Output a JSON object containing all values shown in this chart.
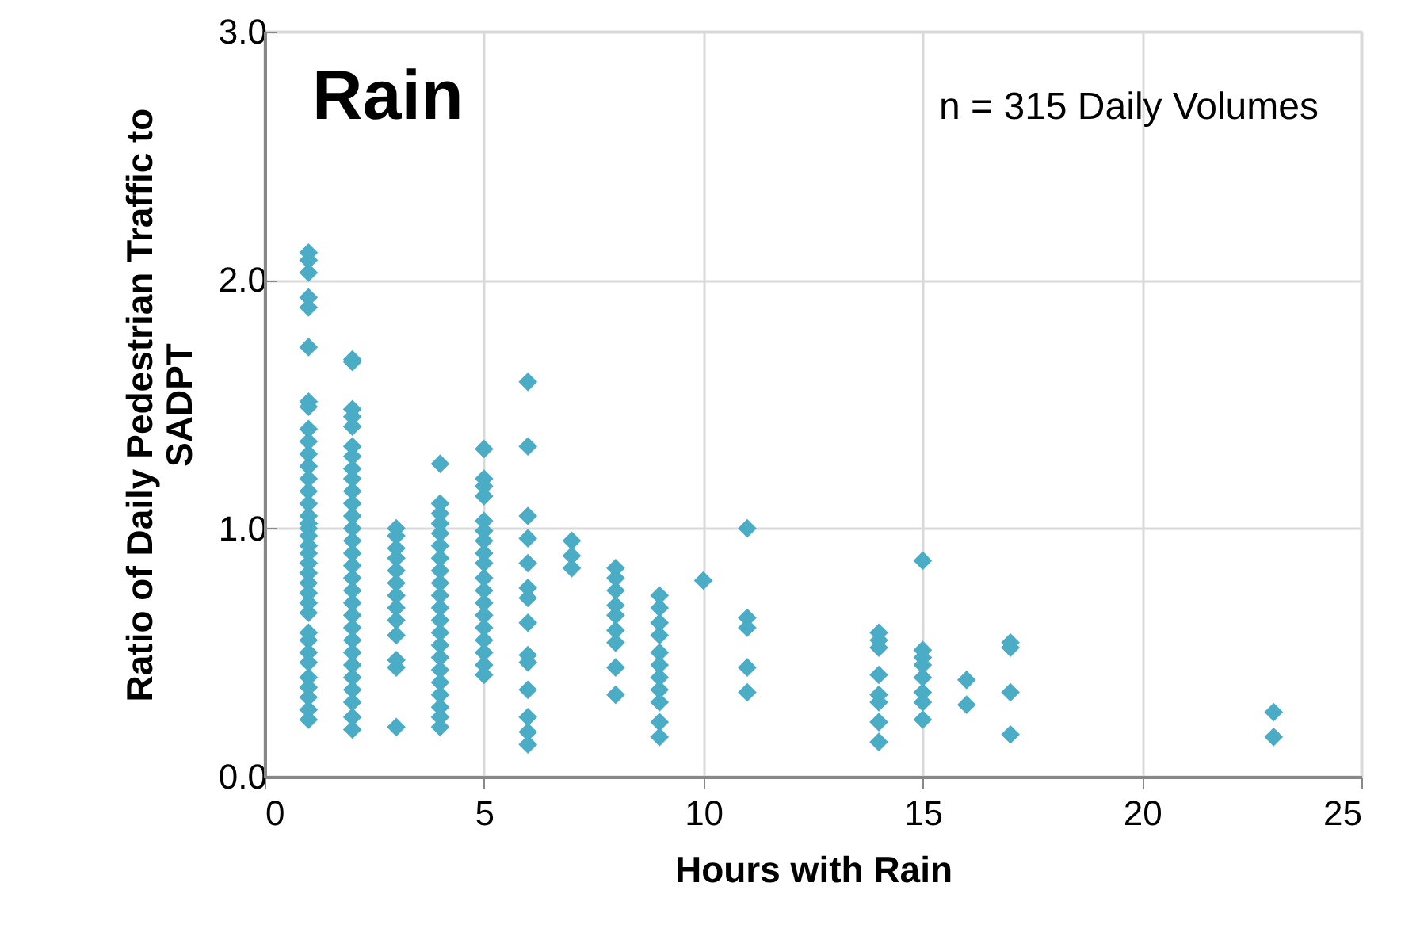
{
  "chart_data": {
    "type": "scatter",
    "title": "Rain",
    "xlabel": "Hours with Rain",
    "ylabel": "Ratio of Daily Pedestrian Traffic to SADPT",
    "annotations": [
      "n = 315 Daily Volumes"
    ],
    "xlim": [
      0,
      25
    ],
    "xticks": [
      0,
      5,
      10,
      15,
      20,
      25
    ],
    "ylim": [
      0,
      3
    ],
    "yticks": [
      {
        "value": 0,
        "label": "0.0"
      },
      {
        "value": 1,
        "label": "1.0"
      },
      {
        "value": 2,
        "label": "2.0"
      },
      {
        "value": 3,
        "label": "3.0"
      }
    ],
    "grid": true,
    "marker": "diamond",
    "series": [
      {
        "color": "#4bacc6",
        "x": [
          1,
          1,
          1,
          1,
          1,
          1,
          1,
          1,
          1,
          1,
          1,
          1,
          1,
          1,
          1,
          1,
          1,
          1,
          1,
          1,
          1,
          1,
          1,
          1,
          1,
          1,
          1,
          1,
          1,
          1,
          1,
          1,
          1,
          1,
          1,
          1,
          2,
          2,
          2,
          2,
          2,
          2,
          2,
          2,
          2,
          2,
          2,
          2,
          2,
          2,
          2,
          2,
          2,
          2,
          2,
          2,
          2,
          2,
          2,
          2,
          2,
          2,
          2,
          2,
          2,
          3,
          3,
          3,
          3,
          3,
          3,
          3,
          3,
          3,
          3,
          3,
          3,
          3,
          4,
          4,
          4,
          4,
          4,
          4,
          4,
          4,
          4,
          4,
          4,
          4,
          4,
          4,
          4,
          4,
          4,
          4,
          4,
          4,
          4,
          5,
          5,
          5,
          5,
          5,
          5,
          5,
          5,
          5,
          5,
          5,
          5,
          5,
          5,
          5,
          5,
          5,
          5,
          6,
          6,
          6,
          6,
          6,
          6,
          6,
          6,
          6,
          6,
          6,
          6,
          6,
          6,
          7,
          7,
          7,
          8,
          8,
          8,
          8,
          8,
          8,
          8,
          8,
          8,
          9,
          9,
          9,
          9,
          9,
          9,
          9,
          9,
          9,
          9,
          9,
          10,
          11,
          11,
          11,
          11,
          11,
          14,
          14,
          14,
          14,
          14,
          14,
          14,
          14,
          15,
          15,
          15,
          15,
          15,
          15,
          15,
          15,
          16,
          16,
          17,
          17,
          17,
          17,
          23,
          23
        ],
        "values": [
          2.11,
          2.08,
          2.03,
          1.93,
          1.89,
          1.73,
          1.51,
          1.49,
          1.4,
          1.35,
          1.3,
          1.25,
          1.2,
          1.15,
          1.1,
          1.05,
          1.02,
          1.0,
          0.97,
          0.93,
          0.9,
          0.86,
          0.82,
          0.78,
          0.74,
          0.7,
          0.66,
          0.58,
          0.55,
          0.5,
          0.46,
          0.4,
          0.36,
          0.32,
          0.27,
          0.23,
          1.68,
          1.67,
          1.48,
          1.45,
          1.41,
          1.33,
          1.29,
          1.24,
          1.2,
          1.15,
          1.1,
          1.05,
          1.0,
          0.95,
          0.9,
          0.85,
          0.8,
          0.75,
          0.7,
          0.65,
          0.6,
          0.55,
          0.5,
          0.45,
          0.4,
          0.35,
          0.3,
          0.24,
          0.19,
          1.0,
          0.97,
          0.92,
          0.88,
          0.83,
          0.78,
          0.73,
          0.68,
          0.63,
          0.57,
          0.47,
          0.44,
          0.2,
          1.26,
          1.1,
          1.06,
          1.02,
          0.98,
          0.93,
          0.88,
          0.83,
          0.78,
          0.73,
          0.68,
          0.63,
          0.58,
          0.53,
          0.48,
          0.43,
          0.38,
          0.33,
          0.28,
          0.24,
          0.2,
          1.32,
          1.2,
          1.17,
          1.13,
          1.03,
          0.99,
          0.95,
          0.9,
          0.86,
          0.8,
          0.75,
          0.7,
          0.65,
          0.6,
          0.55,
          0.5,
          0.45,
          0.41,
          1.59,
          1.33,
          1.05,
          0.96,
          0.86,
          0.76,
          0.72,
          0.62,
          0.49,
          0.46,
          0.35,
          0.24,
          0.18,
          0.13,
          0.95,
          0.89,
          0.84,
          0.84,
          0.8,
          0.75,
          0.69,
          0.65,
          0.59,
          0.54,
          0.44,
          0.33,
          0.73,
          0.68,
          0.62,
          0.57,
          0.5,
          0.45,
          0.4,
          0.35,
          0.3,
          0.22,
          0.16,
          0.79,
          1.0,
          0.64,
          0.6,
          0.44,
          0.34,
          0.58,
          0.55,
          0.52,
          0.41,
          0.33,
          0.3,
          0.22,
          0.14,
          0.87,
          0.51,
          0.48,
          0.45,
          0.4,
          0.34,
          0.3,
          0.23,
          0.39,
          0.29,
          0.54,
          0.52,
          0.34,
          0.17,
          0.26,
          0.16
        ]
      }
    ]
  }
}
